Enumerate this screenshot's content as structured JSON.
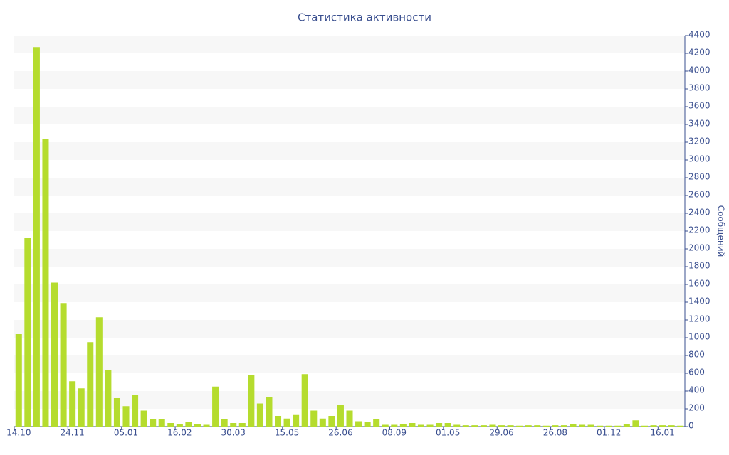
{
  "chart_data": {
    "type": "bar",
    "title": "Статистика активности",
    "y_label": "Сообщений",
    "categories": [
      "14.10",
      null,
      null,
      null,
      null,
      null,
      "24.11",
      null,
      null,
      null,
      null,
      null,
      "05.01",
      null,
      null,
      null,
      null,
      null,
      "16.02",
      null,
      null,
      null,
      null,
      null,
      "30.03",
      null,
      null,
      null,
      null,
      null,
      "15.05",
      null,
      null,
      null,
      null,
      null,
      "26.06",
      null,
      null,
      null,
      null,
      null,
      "08.09",
      null,
      null,
      null,
      null,
      null,
      "01.05",
      null,
      null,
      null,
      null,
      null,
      "29.06",
      null,
      null,
      null,
      null,
      null,
      "26.08",
      null,
      null,
      null,
      null,
      null,
      "01.12",
      null,
      null,
      null,
      null,
      null,
      "16.01",
      null,
      null
    ],
    "values": [
      1040,
      2120,
      4270,
      3240,
      1620,
      1390,
      510,
      430,
      950,
      1230,
      640,
      320,
      230,
      360,
      180,
      80,
      80,
      40,
      30,
      50,
      30,
      20,
      450,
      80,
      40,
      40,
      580,
      260,
      330,
      120,
      90,
      130,
      590,
      180,
      90,
      120,
      240,
      180,
      60,
      50,
      80,
      20,
      20,
      30,
      40,
      20,
      20,
      40,
      40,
      20,
      15,
      15,
      15,
      20,
      15,
      15,
      10,
      15,
      15,
      10,
      15,
      15,
      30,
      20,
      20,
      10,
      10,
      10,
      30,
      70,
      10,
      15,
      15,
      15,
      10
    ],
    "color": "#b5dc2e",
    "ylim": [
      0,
      4400
    ],
    "yticks": [
      0,
      200,
      400,
      600,
      800,
      1000,
      1200,
      1400,
      1600,
      1800,
      2000,
      2200,
      2400,
      2600,
      2800,
      3000,
      3200,
      3400,
      3600,
      3800,
      4000,
      4200,
      4400
    ],
    "grid": true
  }
}
